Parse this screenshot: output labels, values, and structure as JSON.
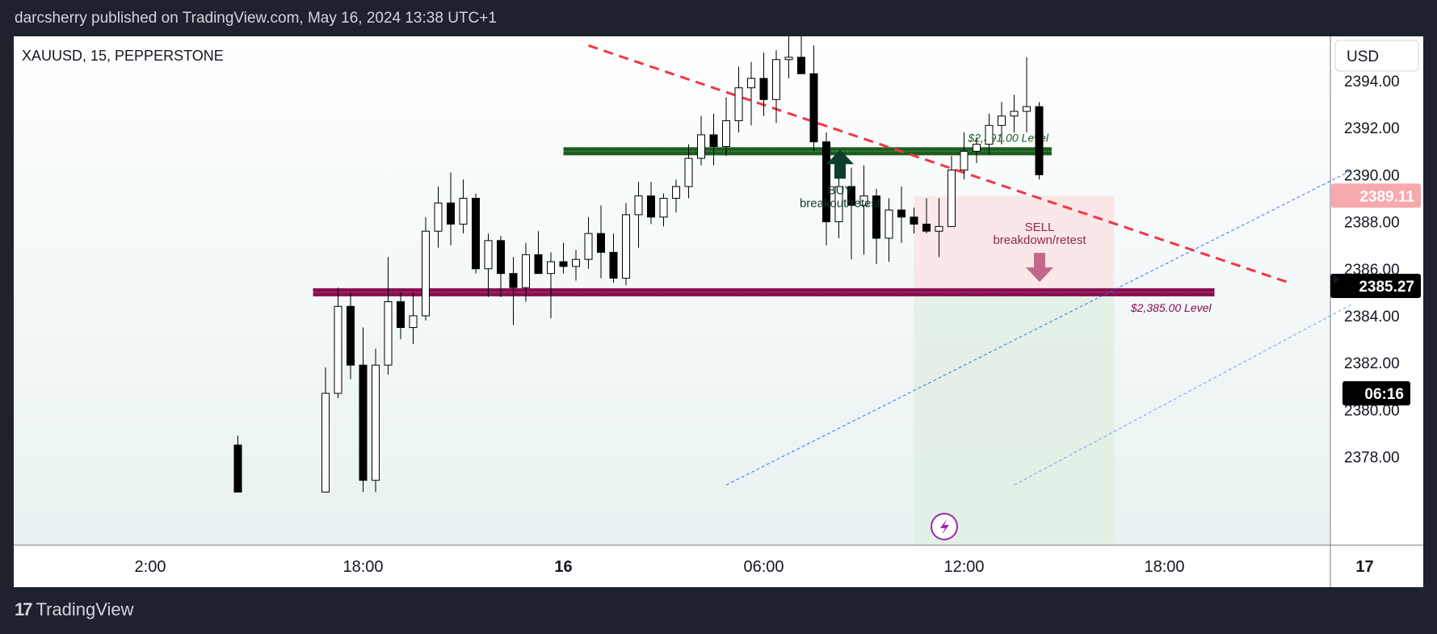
{
  "header": {
    "published_line": "darcsherry published on TradingView.com, May 16, 2024 13:38 UTC+1"
  },
  "footer": {
    "brand": "TradingView"
  },
  "colors": {
    "bull_candle": "#ffffff",
    "bear_candle": "#000000",
    "resistance_green": "#1b5e20",
    "support_maroon": "#880e4f",
    "trendline_red": "#f23645",
    "channel_blue": "#2962ff",
    "price_tag_red": "#f7a9ae",
    "sell_zone": "#fbe4e6",
    "target_zone": "#e2f0e3",
    "buy_arrow": "#0d3d2f",
    "sell_arrow": "#c2698a",
    "lightning_purple": "#9c27b0"
  },
  "chart_data": {
    "type": "candlestick",
    "symbol_line": "XAUUSD, 15, PEPPERSTONE",
    "currency": "USD",
    "ylim": [
      2376.5,
      2396.0
    ],
    "y_ticks": [
      "2394.00",
      "2392.00",
      "2390.00",
      "2388.00",
      "2386.00",
      "2384.00",
      "2382.00",
      "2380.00",
      "2378.00"
    ],
    "x_ticks": [
      {
        "label": "2:00",
        "bar": -3
      },
      {
        "label": "18:00",
        "bar": 14
      },
      {
        "label": "16",
        "bar": 30,
        "bold": true
      },
      {
        "label": "06:00",
        "bar": 46
      },
      {
        "label": "12:00",
        "bar": 62
      },
      {
        "label": "18:00",
        "bar": 78
      },
      {
        "label": "17",
        "bar": 94,
        "bold": true
      }
    ],
    "price_tags": [
      {
        "label": "2389.11",
        "price": 2389.11,
        "style": "red"
      },
      {
        "label": "2385.27",
        "price": 2385.27,
        "style": "black"
      },
      {
        "label": "06:16",
        "price": 2380.7,
        "style": "black"
      }
    ],
    "levels": [
      {
        "name": "resistance",
        "price": 2391.0,
        "from_bar": 30,
        "to_bar": 69,
        "label": "$2,391.00 Level"
      },
      {
        "name": "support",
        "price": 2385.0,
        "from_bar": 10,
        "to_bar": 82,
        "label": "$2,385.00 Level"
      }
    ],
    "annotations": {
      "buy_title": "BUY",
      "buy_sub": "breakout/retest",
      "sell_title": "SELL",
      "sell_sub": "breakdown/retest"
    },
    "trendline": {
      "from": [
        32,
        2395.5
      ],
      "to": [
        88,
        2385.4
      ]
    },
    "channel": [
      {
        "from": [
          43,
          2376.8
        ],
        "to": [
          93,
          2390.2
        ]
      },
      {
        "from": [
          66,
          2376.8
        ],
        "to": [
          93,
          2384.5
        ]
      }
    ],
    "position": {
      "from_bar": 58,
      "to_bar": 74,
      "top": 2389.1,
      "mid": 2385.2,
      "bottom": 2376.5
    },
    "candles": [
      [
        4,
        2378.5,
        2378.9,
        2376.5,
        2376.5
      ],
      [
        11,
        2376.5,
        2381.8,
        2376.5,
        2380.7
      ],
      [
        12,
        2380.7,
        2385.2,
        2380.5,
        2384.4
      ],
      [
        13,
        2384.4,
        2385.0,
        2381.3,
        2381.9
      ],
      [
        14,
        2381.9,
        2383.5,
        2376.5,
        2377.0
      ],
      [
        15,
        2377.0,
        2382.6,
        2376.5,
        2381.9
      ],
      [
        16,
        2381.9,
        2386.5,
        2381.5,
        2384.6
      ],
      [
        17,
        2384.6,
        2385.0,
        2383.0,
        2383.5
      ],
      [
        18,
        2383.5,
        2385.0,
        2382.8,
        2384.0
      ],
      [
        19,
        2384.0,
        2388.2,
        2383.8,
        2387.6
      ],
      [
        20,
        2387.6,
        2389.5,
        2386.9,
        2388.8
      ],
      [
        21,
        2388.8,
        2390.1,
        2387.0,
        2387.9
      ],
      [
        22,
        2387.9,
        2389.8,
        2387.5,
        2389.0
      ],
      [
        23,
        2389.0,
        2389.2,
        2385.8,
        2386.0
      ],
      [
        24,
        2386.0,
        2387.5,
        2384.8,
        2387.2
      ],
      [
        25,
        2387.2,
        2387.4,
        2384.8,
        2385.8
      ],
      [
        26,
        2385.8,
        2386.5,
        2383.6,
        2385.2
      ],
      [
        27,
        2385.2,
        2387.1,
        2384.6,
        2386.6
      ],
      [
        28,
        2386.6,
        2387.6,
        2385.8,
        2385.8
      ],
      [
        29,
        2385.8,
        2386.7,
        2383.9,
        2386.3
      ],
      [
        30,
        2386.3,
        2387.1,
        2385.8,
        2386.1
      ],
      [
        31,
        2386.1,
        2386.8,
        2385.5,
        2386.4
      ],
      [
        32,
        2386.4,
        2388.2,
        2386.0,
        2387.5
      ],
      [
        33,
        2387.5,
        2388.7,
        2385.6,
        2386.7
      ],
      [
        34,
        2386.7,
        2387.5,
        2385.4,
        2385.6
      ],
      [
        35,
        2385.6,
        2388.8,
        2385.3,
        2388.3
      ],
      [
        36,
        2388.3,
        2389.7,
        2386.9,
        2389.1
      ],
      [
        37,
        2389.1,
        2389.7,
        2387.9,
        2388.2
      ],
      [
        38,
        2388.2,
        2389.2,
        2387.8,
        2389.0
      ],
      [
        39,
        2389.0,
        2389.8,
        2388.4,
        2389.5
      ],
      [
        40,
        2389.5,
        2391.3,
        2389.0,
        2390.7
      ],
      [
        41,
        2390.7,
        2392.5,
        2390.4,
        2391.7
      ],
      [
        42,
        2391.7,
        2392.6,
        2390.4,
        2391.2
      ],
      [
        43,
        2391.2,
        2393.3,
        2390.8,
        2392.3
      ],
      [
        44,
        2392.3,
        2394.6,
        2391.8,
        2393.7
      ],
      [
        45,
        2393.7,
        2394.8,
        2392.1,
        2394.1
      ],
      [
        46,
        2394.1,
        2395.2,
        2392.5,
        2393.2
      ],
      [
        47,
        2393.2,
        2395.3,
        2392.2,
        2394.9
      ],
      [
        48,
        2394.9,
        2396.1,
        2394.1,
        2395.0
      ],
      [
        49,
        2395.0,
        2396.2,
        2394.4,
        2394.3
      ],
      [
        50,
        2394.3,
        2395.5,
        2391.0,
        2391.4
      ],
      [
        51,
        2391.4,
        2391.8,
        2387.0,
        2388.0
      ],
      [
        52,
        2388.0,
        2390.0,
        2387.3,
        2389.5
      ],
      [
        53,
        2389.5,
        2390.3,
        2386.4,
        2388.7
      ],
      [
        54,
        2388.7,
        2390.4,
        2386.6,
        2389.1
      ],
      [
        55,
        2389.1,
        2389.4,
        2386.2,
        2387.3
      ],
      [
        56,
        2387.3,
        2389.0,
        2386.3,
        2388.5
      ],
      [
        57,
        2388.5,
        2389.5,
        2387.1,
        2388.2
      ],
      [
        58,
        2388.2,
        2388.6,
        2387.5,
        2387.9
      ],
      [
        59,
        2387.9,
        2389.0,
        2387.5,
        2387.6
      ],
      [
        60,
        2387.6,
        2389.0,
        2386.5,
        2387.8
      ],
      [
        61,
        2387.8,
        2390.8,
        2387.8,
        2390.2
      ],
      [
        62,
        2390.2,
        2391.8,
        2389.8,
        2391.0
      ],
      [
        63,
        2391.0,
        2391.6,
        2390.5,
        2391.3
      ],
      [
        64,
        2391.3,
        2392.6,
        2390.9,
        2392.1
      ],
      [
        65,
        2392.1,
        2393.1,
        2391.3,
        2392.5
      ],
      [
        66,
        2392.5,
        2393.4,
        2391.8,
        2392.7
      ],
      [
        67,
        2392.7,
        2395.0,
        2391.8,
        2392.9
      ],
      [
        68,
        2392.9,
        2393.1,
        2389.8,
        2390.0
      ]
    ]
  }
}
